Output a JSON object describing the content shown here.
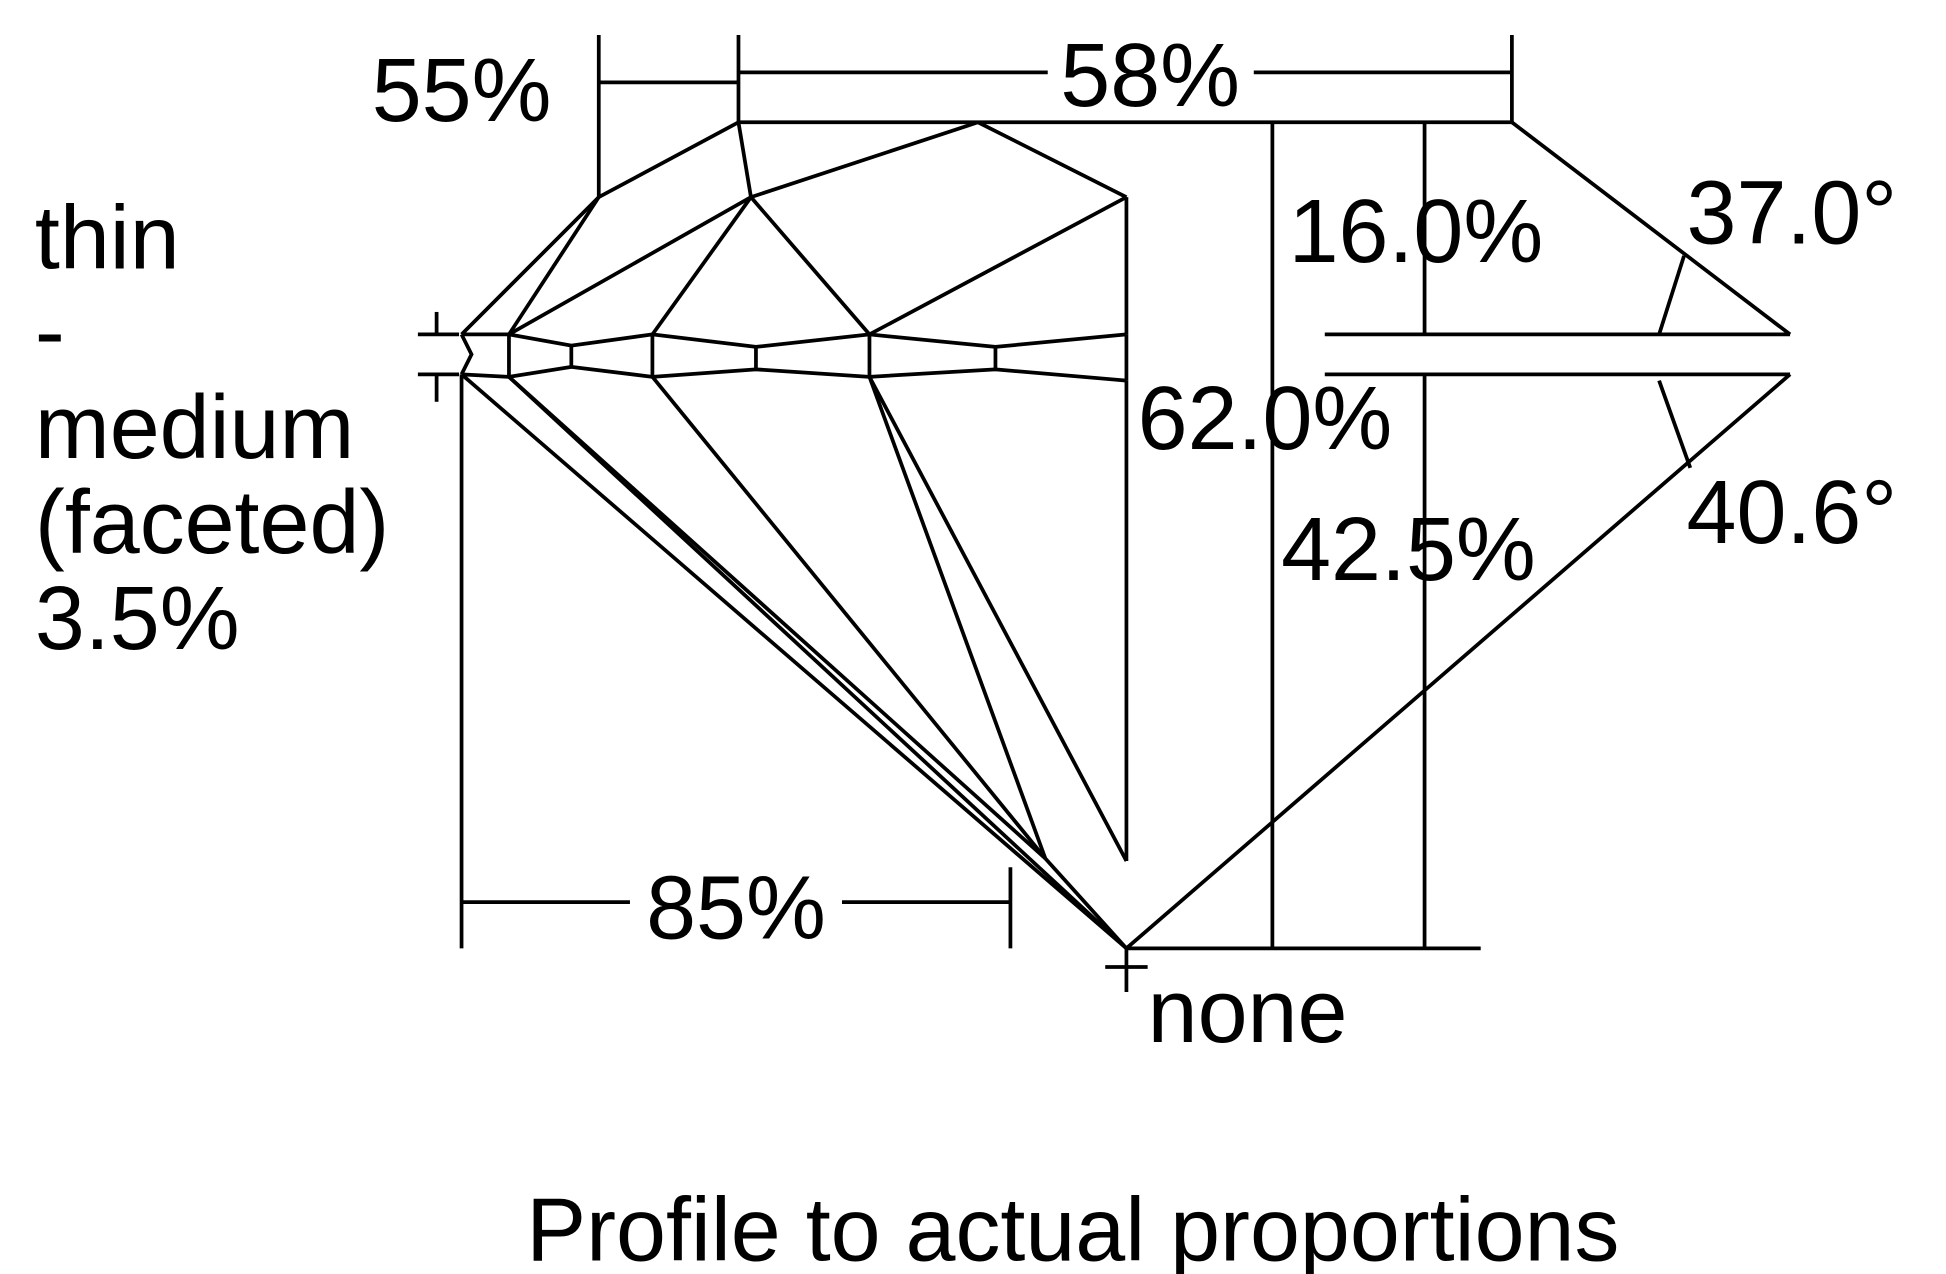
{
  "labels": {
    "star_length": "55%",
    "table": "58%",
    "girdle_line1": "thin",
    "girdle_line2": "-",
    "girdle_line3": "medium",
    "girdle_line4": "(faceted)",
    "girdle_line5": "3.5%",
    "crown_height": "16.0%",
    "crown_angle": "37.0°",
    "total_depth": "62.0%",
    "pavilion_depth": "42.5%",
    "pavilion_angle": "40.6°",
    "lower_half": "85%",
    "culet": "none"
  },
  "caption": "Profile to actual proportions",
  "colors": {
    "line": "#000000",
    "background": "#ffffff"
  }
}
